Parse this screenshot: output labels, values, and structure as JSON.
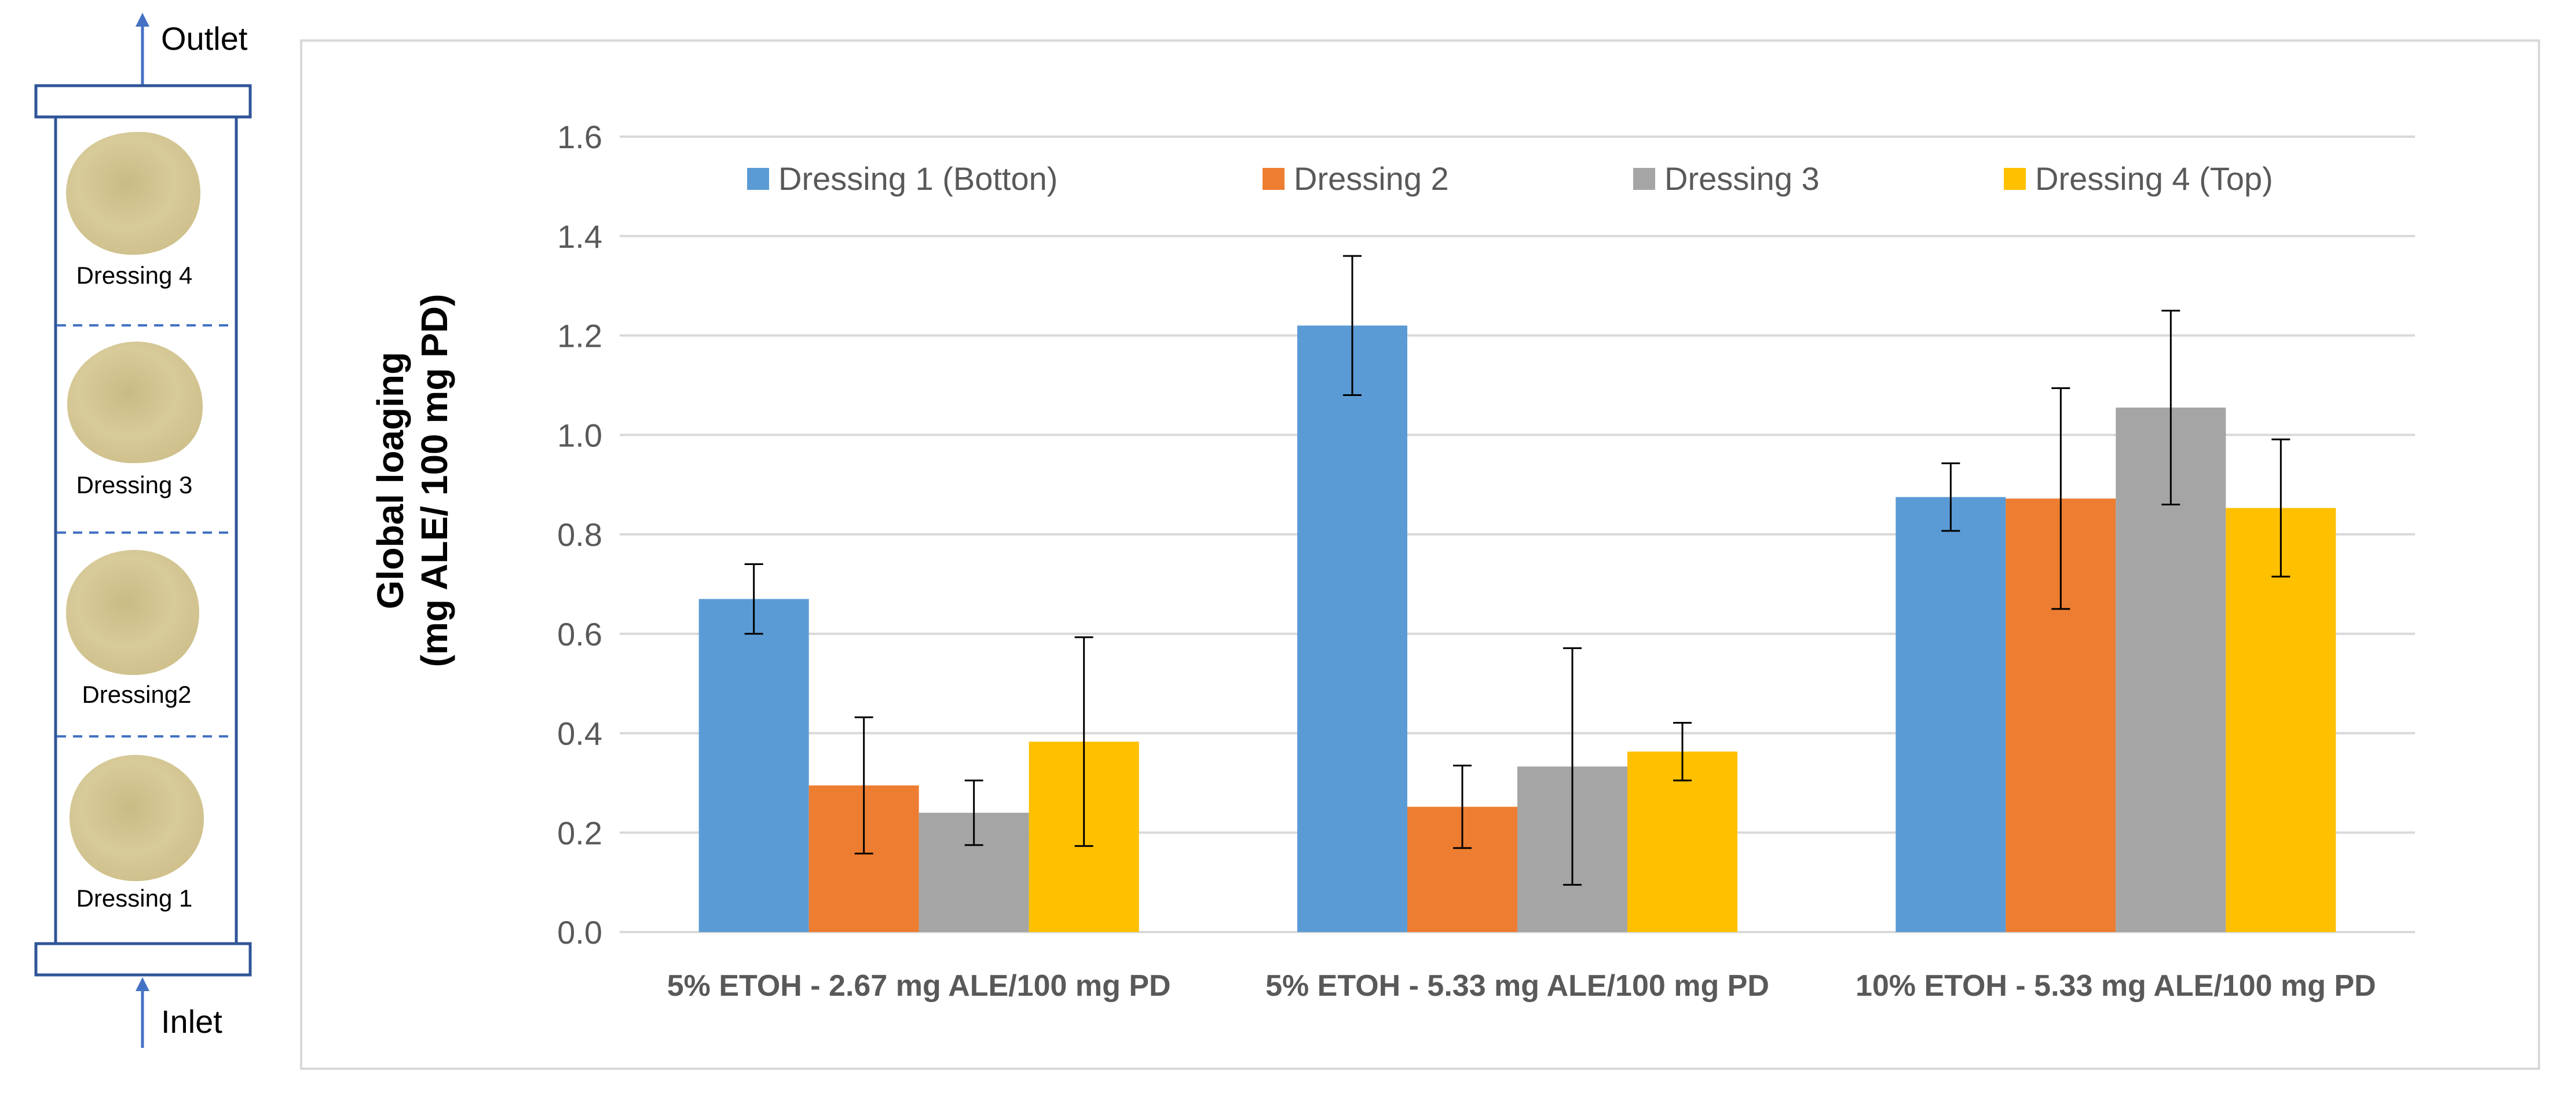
{
  "diagram": {
    "outlet_label": "Outlet",
    "inlet_label": "Inlet",
    "stages": [
      {
        "label": "Dressing 4"
      },
      {
        "label": "Dressing 3"
      },
      {
        "label": "Dressing2"
      },
      {
        "label": "Dressing 1"
      }
    ]
  },
  "colors": {
    "series": [
      "#5b9bd5",
      "#ed7d31",
      "#a5a5a5",
      "#ffc000"
    ],
    "gridline": "#d9d9d9",
    "axis_text": "#595959",
    "column_outline": "#2f5597",
    "dressing_fill": "#d8cb9a"
  },
  "chart_data": {
    "type": "bar",
    "title": "",
    "ylabel_line1": "Global loaging",
    "ylabel_line2": "(mg ALE/ 100 mg PD)",
    "xlabel": "",
    "ylim": [
      0,
      1.6
    ],
    "yticks": [
      "0.0",
      "0.2",
      "0.4",
      "0.6",
      "0.8",
      "1.0",
      "1.2",
      "1.4",
      "1.6"
    ],
    "grid": true,
    "legend_position": "top",
    "categories": [
      "5% ETOH - 2.67 mg ALE/100 mg PD",
      "5% ETOH - 5.33 mg ALE/100 mg PD",
      "10% ETOH - 5.33 mg ALE/100 mg PD"
    ],
    "series": [
      {
        "name": "Dressing 1 (Botton)",
        "values": [
          0.67,
          1.22,
          0.875
        ],
        "errors": [
          0.07,
          0.14,
          0.068
        ]
      },
      {
        "name": "Dressing 2",
        "values": [
          0.295,
          0.252,
          0.872
        ],
        "errors": [
          0.137,
          0.083,
          0.222
        ]
      },
      {
        "name": "Dressing 3",
        "values": [
          0.24,
          0.333,
          1.055
        ],
        "errors": [
          0.065,
          0.238,
          0.195
        ]
      },
      {
        "name": "Dressing 4 (Top)",
        "values": [
          0.383,
          0.363,
          0.853
        ],
        "errors": [
          0.21,
          0.058,
          0.138
        ]
      }
    ]
  }
}
